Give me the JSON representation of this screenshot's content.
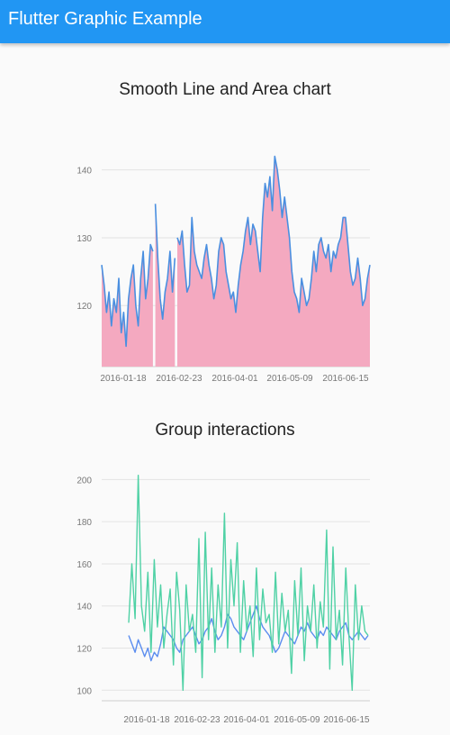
{
  "app_bar": {
    "title": "Flutter Graphic Example"
  },
  "chart_data": [
    {
      "type": "area",
      "title": "Smooth Line and Area chart",
      "xlabel": "",
      "ylabel": "",
      "x_ticks": [
        "2016-01-18",
        "2016-02-23",
        "2016-04-01",
        "2016-05-09",
        "2016-06-15"
      ],
      "y_ticks": [
        120,
        130,
        140
      ],
      "ylim": [
        111,
        145
      ],
      "grid": true,
      "gaps_after_index": [
        9,
        13
      ],
      "line_color": "#4a8fe0",
      "area_color": "#f4a9c0",
      "series": [
        {
          "values": [
            126,
            123,
            119,
            122,
            117,
            121,
            119,
            124,
            116,
            119,
            114,
            121,
            124,
            126,
            120,
            117,
            124,
            128,
            121,
            124,
            129,
            128,
            135,
            127,
            121,
            118,
            122,
            124,
            128,
            122,
            127,
            130,
            129,
            131,
            126,
            122,
            123,
            133,
            128,
            126,
            125,
            124,
            127,
            129,
            126,
            124,
            121,
            123,
            128,
            130,
            129,
            125,
            123,
            121,
            122,
            119,
            123,
            126,
            128,
            131,
            133,
            129,
            132,
            131,
            128,
            125,
            133,
            138,
            136,
            139,
            134,
            142,
            140,
            137,
            133,
            136,
            133,
            130,
            125,
            122,
            121,
            119,
            124,
            122,
            120,
            121,
            124,
            128,
            125,
            129,
            130,
            128,
            127,
            129,
            125,
            128,
            127,
            129,
            130,
            133,
            133,
            129,
            125,
            123,
            124,
            127,
            124,
            120,
            121,
            124,
            126
          ]
        }
      ]
    },
    {
      "type": "line",
      "title": "Group interactions",
      "xlabel": "",
      "ylabel": "",
      "x_ticks": [
        "2016-01-18",
        "2016-02-23",
        "2016-04-01",
        "2016-05-09",
        "2016-06-15"
      ],
      "y_ticks": [
        100,
        120,
        140,
        160,
        180,
        200
      ],
      "ylim": [
        95,
        207
      ],
      "grid": true,
      "series": [
        {
          "color": "#5b8def",
          "values": [
            126,
            122,
            118,
            124,
            120,
            116,
            120,
            114,
            118,
            116,
            122,
            130,
            128,
            126,
            124,
            120,
            118,
            124,
            126,
            128,
            130,
            126,
            122,
            124,
            128,
            130,
            134,
            128,
            124,
            126,
            130,
            136,
            134,
            130,
            128,
            126,
            124,
            128,
            132,
            136,
            140,
            134,
            130,
            128,
            126,
            122,
            118,
            120,
            124,
            128,
            126,
            124,
            122,
            126,
            130,
            128,
            132,
            128,
            126,
            124,
            128,
            126,
            130,
            128,
            126,
            124,
            128,
            130,
            132,
            126,
            124,
            126,
            128,
            126,
            124,
            126
          ]
        },
        {
          "color": "#4fd1a5",
          "values": [
            132,
            160,
            134,
            202,
            140,
            128,
            156,
            118,
            162,
            130,
            150,
            120,
            136,
            148,
            112,
            156,
            138,
            100,
            150,
            128,
            136,
            118,
            172,
            106,
            175,
            124,
            158,
            118,
            150,
            130,
            184,
            120,
            162,
            140,
            170,
            118,
            152,
            128,
            140,
            116,
            158,
            124,
            148,
            132,
            136,
            118,
            156,
            122,
            146,
            128,
            138,
            108,
            152,
            126,
            158,
            114,
            140,
            128,
            150,
            120,
            142,
            130,
            176,
            110,
            168,
            124,
            138,
            112,
            158,
            126,
            100,
            150,
            124,
            140,
            128,
            126
          ]
        }
      ]
    }
  ]
}
